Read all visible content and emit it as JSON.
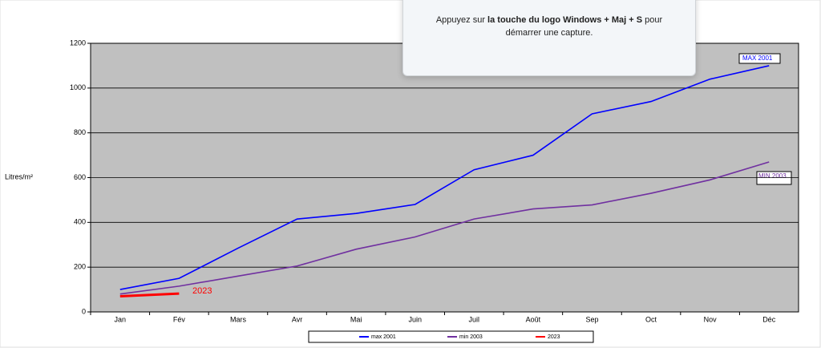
{
  "chart_data": {
    "type": "line",
    "y_label": "Litres/m²",
    "categories": [
      "Jan",
      "Fév",
      "Mars",
      "Avr",
      "Mai",
      "Juin",
      "Juil",
      "Août",
      "Sep",
      "Oct",
      "Nov",
      "Déc"
    ],
    "series": [
      {
        "name": "max 2001",
        "color": "#0000ff",
        "values": [
          100,
          150,
          285,
          415,
          440,
          480,
          635,
          700,
          885,
          940,
          1040,
          1100
        ]
      },
      {
        "name": "min 2003",
        "color": "#7030a0",
        "values": [
          80,
          115,
          160,
          205,
          280,
          335,
          415,
          460,
          478,
          530,
          590,
          670
        ]
      },
      {
        "name": "2023",
        "color": "#ff0000",
        "values": [
          70,
          82,
          null,
          null,
          null,
          null,
          null,
          null,
          null,
          null,
          null,
          null
        ]
      }
    ],
    "annotations": [
      "MAX 2001",
      "MIN 2003",
      "2023"
    ],
    "ylim": [
      0,
      1200
    ],
    "yticks": [
      0,
      200,
      400,
      600,
      800,
      1000,
      1200
    ],
    "grid": true,
    "legend": "bottom"
  },
  "notification": {
    "text_before": "Appuyez sur ",
    "text_bold": "la touche du logo Windows + Maj + S",
    "text_after": " pour démarrer une capture."
  }
}
